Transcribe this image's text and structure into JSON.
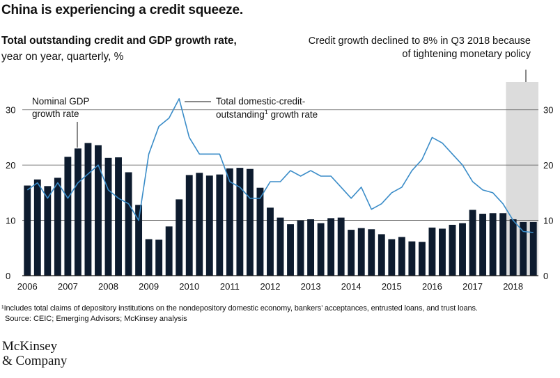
{
  "title": "China is experiencing a credit squeeze.",
  "subtitle": "Total outstanding credit and GDP growth rate,",
  "subtitle2": "year on year, quarterly, %",
  "note": "Credit growth declined to 8% in Q3 2018 because of tightening monetary policy",
  "footnote": "¹Includes total claims of depository institutions on the nondepository domestic economy, bankers’ acceptances, entrusted loans, and trust loans.",
  "source": "Source: CEIC; Emerging Advisors; McKinsey analysis",
  "logo": {
    "line1": "McKinsey",
    "line2": "& Company"
  },
  "colors": {
    "bars": "#0d1b2e",
    "line": "#3a8cc8",
    "shade": "#dcdcdc",
    "axis": "#111111",
    "grid": "#555555"
  },
  "chart_data": {
    "type": "bar",
    "ylim": [
      0,
      35
    ],
    "yticks": [
      0,
      10,
      20,
      30
    ],
    "xticks": [
      "2006",
      "2007",
      "2008",
      "2009",
      "2010",
      "2011",
      "2012",
      "2013",
      "2014",
      "2015",
      "2016",
      "2017",
      "2018"
    ],
    "label_gdp": [
      "Nominal GDP",
      "growth rate"
    ],
    "label_credit": [
      "Total domestic-credit-",
      "outstanding",
      "1",
      " growth rate"
    ],
    "series": [
      {
        "name": "Nominal GDP growth rate",
        "kind": "bar",
        "values": [
          16.3,
          17.4,
          16.2,
          17.7,
          21.5,
          23.0,
          24.0,
          23.6,
          21.3,
          21.4,
          18.7,
          12.8,
          6.6,
          6.5,
          8.9,
          13.8,
          18.2,
          18.6,
          18.1,
          18.3,
          19.4,
          19.5,
          19.3,
          15.9,
          12.3,
          10.5,
          9.3,
          10.0,
          10.2,
          9.5,
          10.4,
          10.5,
          8.3,
          8.6,
          8.4,
          7.5,
          6.6,
          7.0,
          6.2,
          6.1,
          8.7,
          8.5,
          9.2,
          9.5,
          11.9,
          11.2,
          11.3,
          11.3,
          10.2,
          9.7,
          9.7
        ]
      },
      {
        "name": "Total domestic-credit-outstanding growth rate",
        "kind": "line",
        "values": [
          15.5,
          16.8,
          14.0,
          16.8,
          14.0,
          16.8,
          18.4,
          20.0,
          15.5,
          14.0,
          13.0,
          10.0,
          22.0,
          27.0,
          28.5,
          32.0,
          25.0,
          22.0,
          22.0,
          22.0,
          17.0,
          16.0,
          14.0,
          14.0,
          17.0,
          17.0,
          19.0,
          18.0,
          19.0,
          18.0,
          18.0,
          16.0,
          14.0,
          16.0,
          12.0,
          13.0,
          15.0,
          16.0,
          19.0,
          21.0,
          25.0,
          24.0,
          22.0,
          20.0,
          17.0,
          15.5,
          15.0,
          13.0,
          10.0,
          8.0,
          7.8
        ]
      }
    ],
    "shaded_region_from_index": 48
  }
}
